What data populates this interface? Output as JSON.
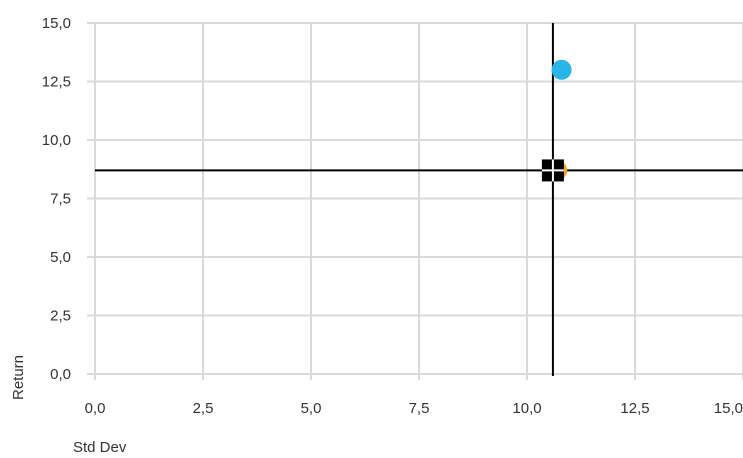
{
  "chart_data": {
    "type": "scatter",
    "title": "",
    "xlabel": "Std Dev",
    "ylabel": "Return",
    "xlim": [
      0,
      15
    ],
    "ylim": [
      0,
      15
    ],
    "x_ticks": [
      "0,0",
      "2,5",
      "5,0",
      "7,5",
      "10,0",
      "12,5",
      "15,0"
    ],
    "y_ticks": [
      "0,0",
      "2,5",
      "5,0",
      "7,5",
      "10,0",
      "12,5",
      "15,0"
    ],
    "grid": {
      "vertical": true,
      "horizontal": true
    },
    "points": [
      {
        "x": 10.8,
        "y": 13.0,
        "color": "#29b5e8",
        "marker": "circle"
      },
      {
        "x": 10.7,
        "y": 8.7,
        "color": "#f5a623",
        "marker": "circle"
      },
      {
        "x": 10.6,
        "y": 8.7,
        "color": "#000000",
        "marker": "square-cross"
      }
    ],
    "crosshair": {
      "x": 10.6,
      "y": 8.7,
      "color": "#000000"
    }
  }
}
